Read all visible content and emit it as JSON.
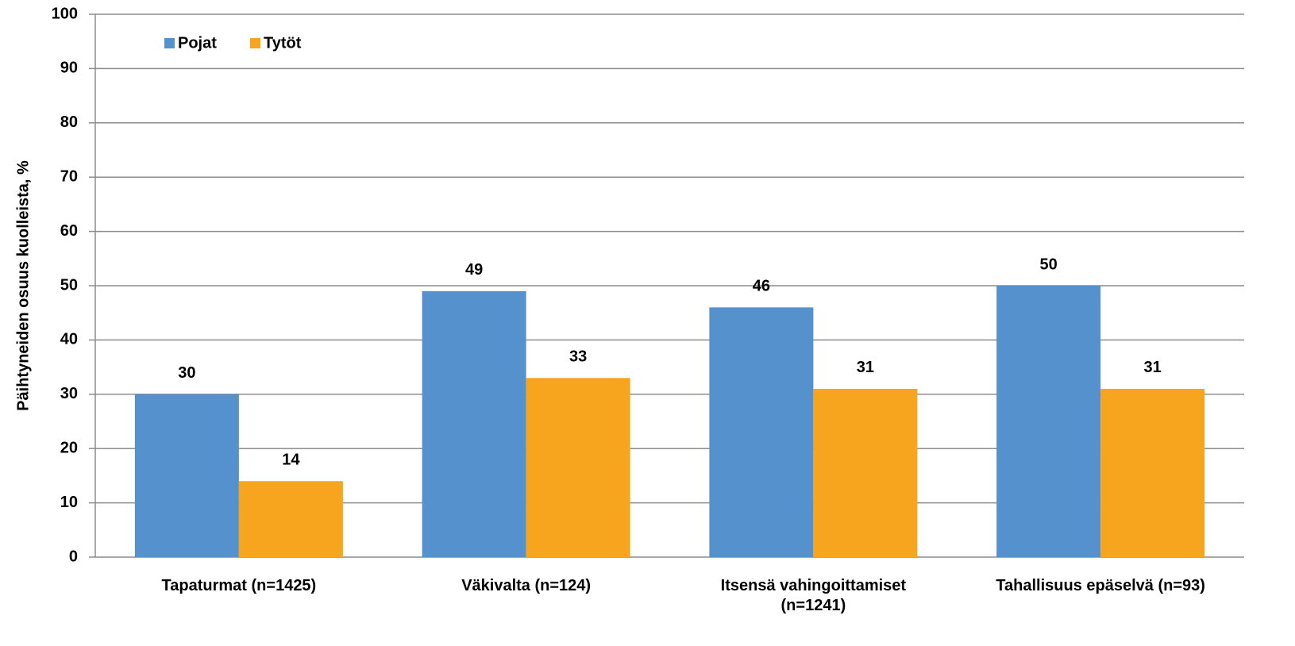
{
  "chart_data": {
    "type": "bar",
    "y_label": "Päihtyneiden osuus kuolleista, %",
    "categories": [
      "Tapaturmat (n=1425)",
      "Väkivalta (n=124)",
      "Itsensä vahingoittamiset (n=1241)",
      "Tahallisuus epäselvä (n=93)"
    ],
    "series": [
      {
        "name": "Pojat",
        "color": "#5591cc",
        "values": [
          30,
          49,
          46,
          50
        ]
      },
      {
        "name": "Tytöt",
        "color": "#f7a51f",
        "values": [
          14,
          33,
          31,
          31
        ]
      }
    ],
    "ylim": [
      0,
      100
    ],
    "yticks": [
      0,
      10,
      20,
      30,
      40,
      50,
      60,
      70,
      80,
      90,
      100
    ],
    "grid": true,
    "legend": "upper left"
  }
}
